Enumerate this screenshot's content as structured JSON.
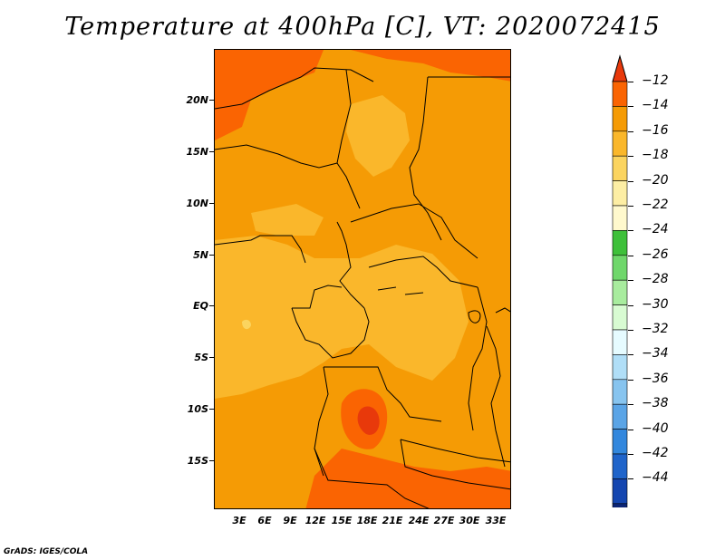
{
  "title": "Temperature at 400hPa [C], VT: 2020072415",
  "credit": "GrADS: IGES/COLA",
  "lat_labels": [
    "20N",
    "15N",
    "10N",
    "5N",
    "EQ",
    "5S",
    "10S",
    "15S"
  ],
  "lon_labels": [
    "3E",
    "6E",
    "9E",
    "12E",
    "15E",
    "18E",
    "21E",
    "24E",
    "27E",
    "30E",
    "33E"
  ],
  "colorbar": {
    "labels": [
      "-12",
      "-14",
      "-16",
      "-18",
      "-20",
      "-22",
      "-24",
      "-26",
      "-28",
      "-30",
      "-32",
      "-34",
      "-36",
      "-38",
      "-40",
      "-42",
      "-44"
    ],
    "colors": [
      "#e8390b",
      "#fa6402",
      "#f59b05",
      "#fab72b",
      "#fbd45f",
      "#fdeea4",
      "#fff9cd",
      "#3ec03a",
      "#6fd76b",
      "#a8ec9e",
      "#d8fbd2",
      "#e6fbff",
      "#b0def7",
      "#87c4ef",
      "#5aa4e6",
      "#3287dd",
      "#1f64ca",
      "#1446b0",
      "#0c2576",
      "#0b0d56",
      "#ded9f1"
    ]
  }
}
